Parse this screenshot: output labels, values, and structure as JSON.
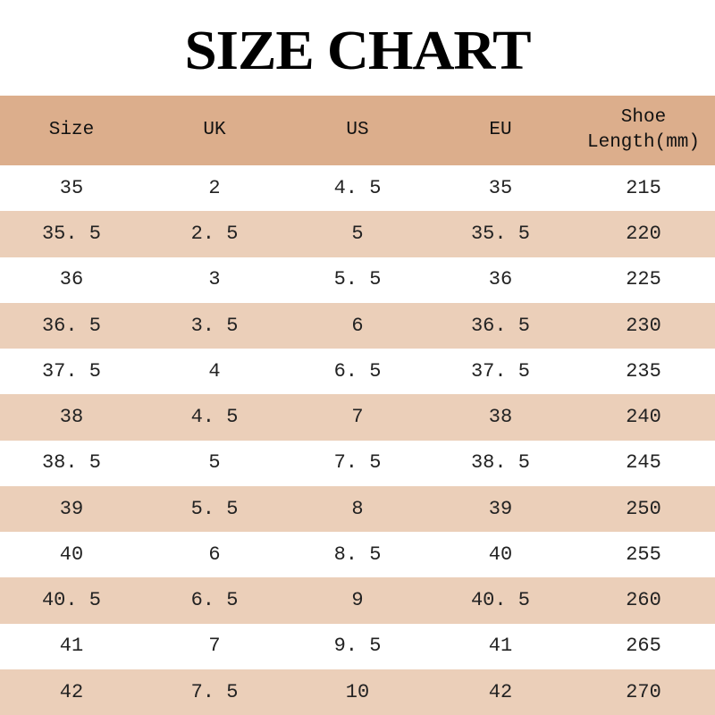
{
  "title": "SIZE CHART",
  "chart_data": {
    "type": "table",
    "columns": [
      "Size",
      "UK",
      "US",
      "EU",
      "Shoe Length(mm)"
    ],
    "header_lines": [
      [
        "Size"
      ],
      [
        "UK"
      ],
      [
        "US"
      ],
      [
        "EU"
      ],
      [
        "Shoe",
        "Length(mm)"
      ]
    ],
    "rows": [
      [
        "35",
        "2",
        "4.5",
        "35",
        "215"
      ],
      [
        "35.5",
        "2.5",
        "5",
        "35.5",
        "220"
      ],
      [
        "36",
        "3",
        "5.5",
        "36",
        "225"
      ],
      [
        "36.5",
        "3.5",
        "6",
        "36.5",
        "230"
      ],
      [
        "37.5",
        "4",
        "6.5",
        "37.5",
        "235"
      ],
      [
        "38",
        "4.5",
        "7",
        "38",
        "240"
      ],
      [
        "38.5",
        "5",
        "7.5",
        "38.5",
        "245"
      ],
      [
        "39",
        "5.5",
        "8",
        "39",
        "250"
      ],
      [
        "40",
        "6",
        "8.5",
        "40",
        "255"
      ],
      [
        "40.5",
        "6.5",
        "9",
        "40.5",
        "260"
      ],
      [
        "41",
        "7",
        "9.5",
        "41",
        "265"
      ],
      [
        "42",
        "7.5",
        "10",
        "42",
        "270"
      ]
    ]
  },
  "colors": {
    "header": "#dcae8c",
    "alt_row": "#ebcfb9",
    "row": "#ffffff"
  }
}
